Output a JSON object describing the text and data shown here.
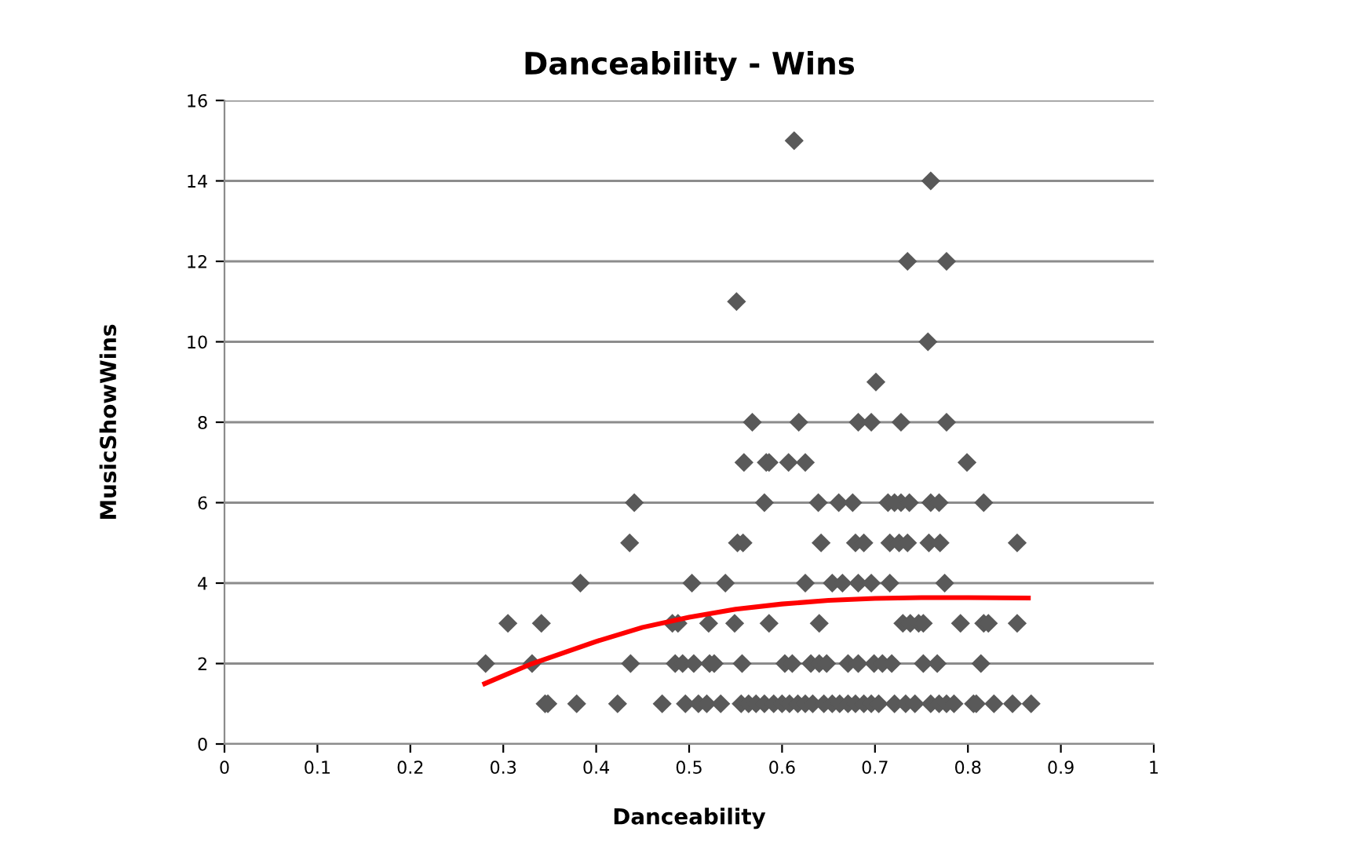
{
  "chart_data": {
    "type": "scatter",
    "title": "Danceability - Wins",
    "xlabel": "Danceability",
    "ylabel": "MusicShowWins",
    "xlim": [
      0,
      1
    ],
    "xticks": [
      0,
      0.1,
      0.2,
      0.3,
      0.4,
      0.5,
      0.6,
      0.7,
      0.8,
      0.9,
      1
    ],
    "ylim": [
      0,
      16
    ],
    "yticks": [
      0,
      2,
      4,
      6,
      8,
      10,
      12,
      14,
      16
    ],
    "grid": "y",
    "legend": false,
    "series": [
      {
        "color": "#595959",
        "marker": "diamond",
        "x": [
          0.613,
          0.76,
          0.735,
          0.777,
          0.551,
          0.757,
          0.701,
          0.568,
          0.618,
          0.682,
          0.696,
          0.728,
          0.777,
          0.559,
          0.583,
          0.586,
          0.607,
          0.625,
          0.799,
          0.441,
          0.581,
          0.639,
          0.661,
          0.676,
          0.714,
          0.721,
          0.728,
          0.737,
          0.76,
          0.769,
          0.817,
          0.436,
          0.552,
          0.558,
          0.642,
          0.679,
          0.688,
          0.716,
          0.726,
          0.735,
          0.758,
          0.77,
          0.853,
          0.383,
          0.503,
          0.539,
          0.625,
          0.654,
          0.665,
          0.682,
          0.696,
          0.716,
          0.775,
          0.305,
          0.341,
          0.482,
          0.488,
          0.521,
          0.549,
          0.586,
          0.64,
          0.73,
          0.738,
          0.747,
          0.752,
          0.792,
          0.817,
          0.822,
          0.853,
          0.281,
          0.331,
          0.437,
          0.485,
          0.493,
          0.505,
          0.522,
          0.527,
          0.557,
          0.603,
          0.611,
          0.631,
          0.64,
          0.648,
          0.671,
          0.682,
          0.699,
          0.708,
          0.718,
          0.752,
          0.767,
          0.814,
          0.345,
          0.348,
          0.379,
          0.423,
          0.471,
          0.496,
          0.51,
          0.519,
          0.534,
          0.556,
          0.564,
          0.572,
          0.581,
          0.591,
          0.6,
          0.608,
          0.617,
          0.625,
          0.633,
          0.645,
          0.654,
          0.662,
          0.671,
          0.679,
          0.688,
          0.696,
          0.704,
          0.721,
          0.733,
          0.743,
          0.76,
          0.769,
          0.777,
          0.785,
          0.806,
          0.809,
          0.828,
          0.848,
          0.868
        ],
        "values": [
          15,
          14,
          12,
          12,
          11,
          10,
          9,
          8,
          8,
          8,
          8,
          8,
          8,
          7,
          7,
          7,
          7,
          7,
          7,
          6,
          6,
          6,
          6,
          6,
          6,
          6,
          6,
          6,
          6,
          6,
          6,
          5,
          5,
          5,
          5,
          5,
          5,
          5,
          5,
          5,
          5,
          5,
          5,
          4,
          4,
          4,
          4,
          4,
          4,
          4,
          4,
          4,
          4,
          3,
          3,
          3,
          3,
          3,
          3,
          3,
          3,
          3,
          3,
          3,
          3,
          3,
          3,
          3,
          3,
          2,
          2,
          2,
          2,
          2,
          2,
          2,
          2,
          2,
          2,
          2,
          2,
          2,
          2,
          2,
          2,
          2,
          2,
          2,
          2,
          2,
          2,
          1,
          1,
          1,
          1,
          1,
          1,
          1,
          1,
          1,
          1,
          1,
          1,
          1,
          1,
          1,
          1,
          1,
          1,
          1,
          1,
          1,
          1,
          1,
          1,
          1,
          1,
          1,
          1,
          1,
          1,
          1,
          1,
          1,
          1,
          1,
          1,
          1,
          1,
          1
        ]
      },
      {
        "type": "line",
        "color": "#ff0000",
        "marker": "none",
        "line_style": "solid",
        "x": [
          0.28,
          0.33,
          0.4,
          0.45,
          0.5,
          0.55,
          0.6,
          0.65,
          0.7,
          0.75,
          0.8,
          0.865
        ],
        "values": [
          1.5,
          1.99,
          2.55,
          2.9,
          3.15,
          3.35,
          3.48,
          3.57,
          3.62,
          3.64,
          3.64,
          3.63
        ]
      }
    ]
  }
}
